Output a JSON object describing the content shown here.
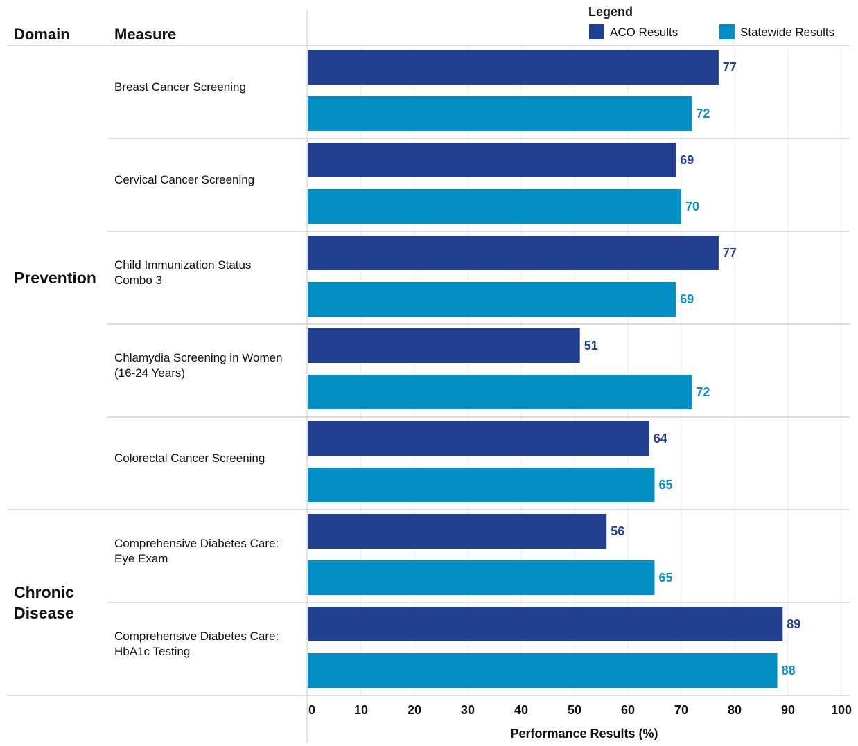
{
  "headers": {
    "domain": "Domain",
    "measure": "Measure"
  },
  "legend": {
    "title": "Legend",
    "placement": "top-right"
  },
  "colors": {
    "aco": "#233f8f",
    "statewide": "#0590c5",
    "grid": "#ebebeb",
    "separator": "#d4d4d4",
    "axis_line": "#c8c8c8"
  },
  "chart_data": {
    "type": "bar",
    "orientation": "horizontal",
    "grid": true,
    "xlim": [
      0,
      100
    ],
    "xticks": [
      0,
      10,
      20,
      30,
      40,
      50,
      60,
      70,
      80,
      90,
      100
    ],
    "xlabel": "Performance Results (%)",
    "ylabel": "",
    "title": "",
    "categories": [
      "Breast Cancer Screening",
      "Cervical Cancer Screening",
      "Child Immunization Status Combo 3",
      "Chlamydia Screening in Women (16-24 Years)",
      "Colorectal Cancer Screening",
      "Comprehensive Diabetes Care: Eye Exam",
      "Comprehensive Diabetes Care: HbA1c Testing"
    ],
    "measure_label_lines": [
      [
        "Breast Cancer Screening"
      ],
      [
        "Cervical Cancer Screening"
      ],
      [
        "Child Immunization Status",
        "Combo 3"
      ],
      [
        "Chlamydia Screening in Women",
        "(16-24 Years)"
      ],
      [
        "Colorectal Cancer Screening"
      ],
      [
        "Comprehensive Diabetes Care:",
        "Eye Exam"
      ],
      [
        "Comprehensive Diabetes Care:",
        "HbA1c Testing"
      ]
    ],
    "domains": [
      {
        "label_lines": [
          "Prevention"
        ],
        "measure_indices": [
          0,
          1,
          2,
          3,
          4
        ]
      },
      {
        "label_lines": [
          "Chronic",
          "Disease"
        ],
        "measure_indices": [
          5,
          6
        ]
      }
    ],
    "series": [
      {
        "name": "ACO Results",
        "color": "#233f8f",
        "values": [
          77,
          69,
          77,
          51,
          64,
          56,
          89
        ]
      },
      {
        "name": "Statewide Results",
        "color": "#0590c5",
        "values": [
          72,
          70,
          69,
          72,
          65,
          65,
          88
        ]
      }
    ],
    "value_labels_shown": true
  }
}
